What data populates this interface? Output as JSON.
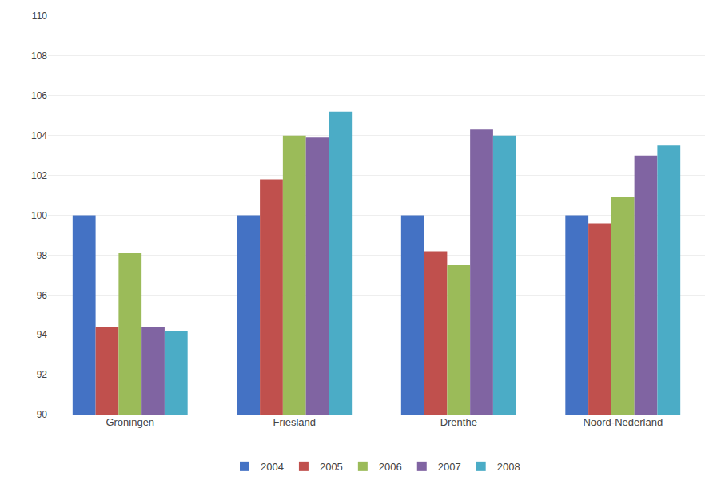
{
  "chart_data": {
    "type": "bar",
    "categories": [
      "Groningen",
      "Friesland",
      "Drenthe",
      "Noord-Nederland"
    ],
    "series": [
      {
        "name": "2004",
        "color": "#4472C4",
        "values": [
          100.0,
          100.0,
          100.0,
          100.0
        ]
      },
      {
        "name": "2005",
        "color": "#C0504D",
        "values": [
          94.4,
          101.8,
          98.2,
          99.6
        ]
      },
      {
        "name": "2006",
        "color": "#9BBB59",
        "values": [
          98.1,
          104.0,
          97.5,
          100.9
        ]
      },
      {
        "name": "2007",
        "color": "#8064A2",
        "values": [
          94.4,
          103.9,
          104.3,
          103.0
        ]
      },
      {
        "name": "2008",
        "color": "#4BACC6",
        "values": [
          94.2,
          105.2,
          104.0,
          103.5
        ]
      }
    ],
    "ylim": [
      90,
      110
    ],
    "yticks": [
      90,
      92,
      94,
      96,
      98,
      100,
      102,
      104,
      106,
      108,
      110
    ],
    "grid": true,
    "legend": "bottom"
  }
}
